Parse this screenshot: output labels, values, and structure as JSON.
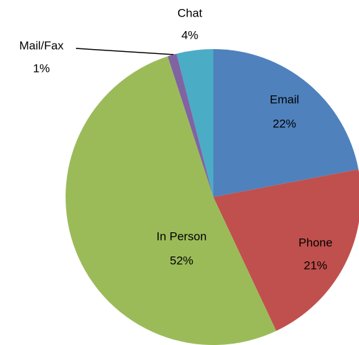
{
  "chart_data": {
    "type": "pie",
    "categories": [
      "Email",
      "Phone",
      "In Person",
      "Mail/Fax",
      "Chat"
    ],
    "values": [
      22,
      21,
      52,
      1,
      4
    ],
    "value_labels": [
      "22%",
      "21%",
      "52%",
      "1%",
      "4%"
    ],
    "colors": [
      "#4f81bd",
      "#c0504d",
      "#9bbb59",
      "#8064a2",
      "#4bacc6"
    ]
  }
}
